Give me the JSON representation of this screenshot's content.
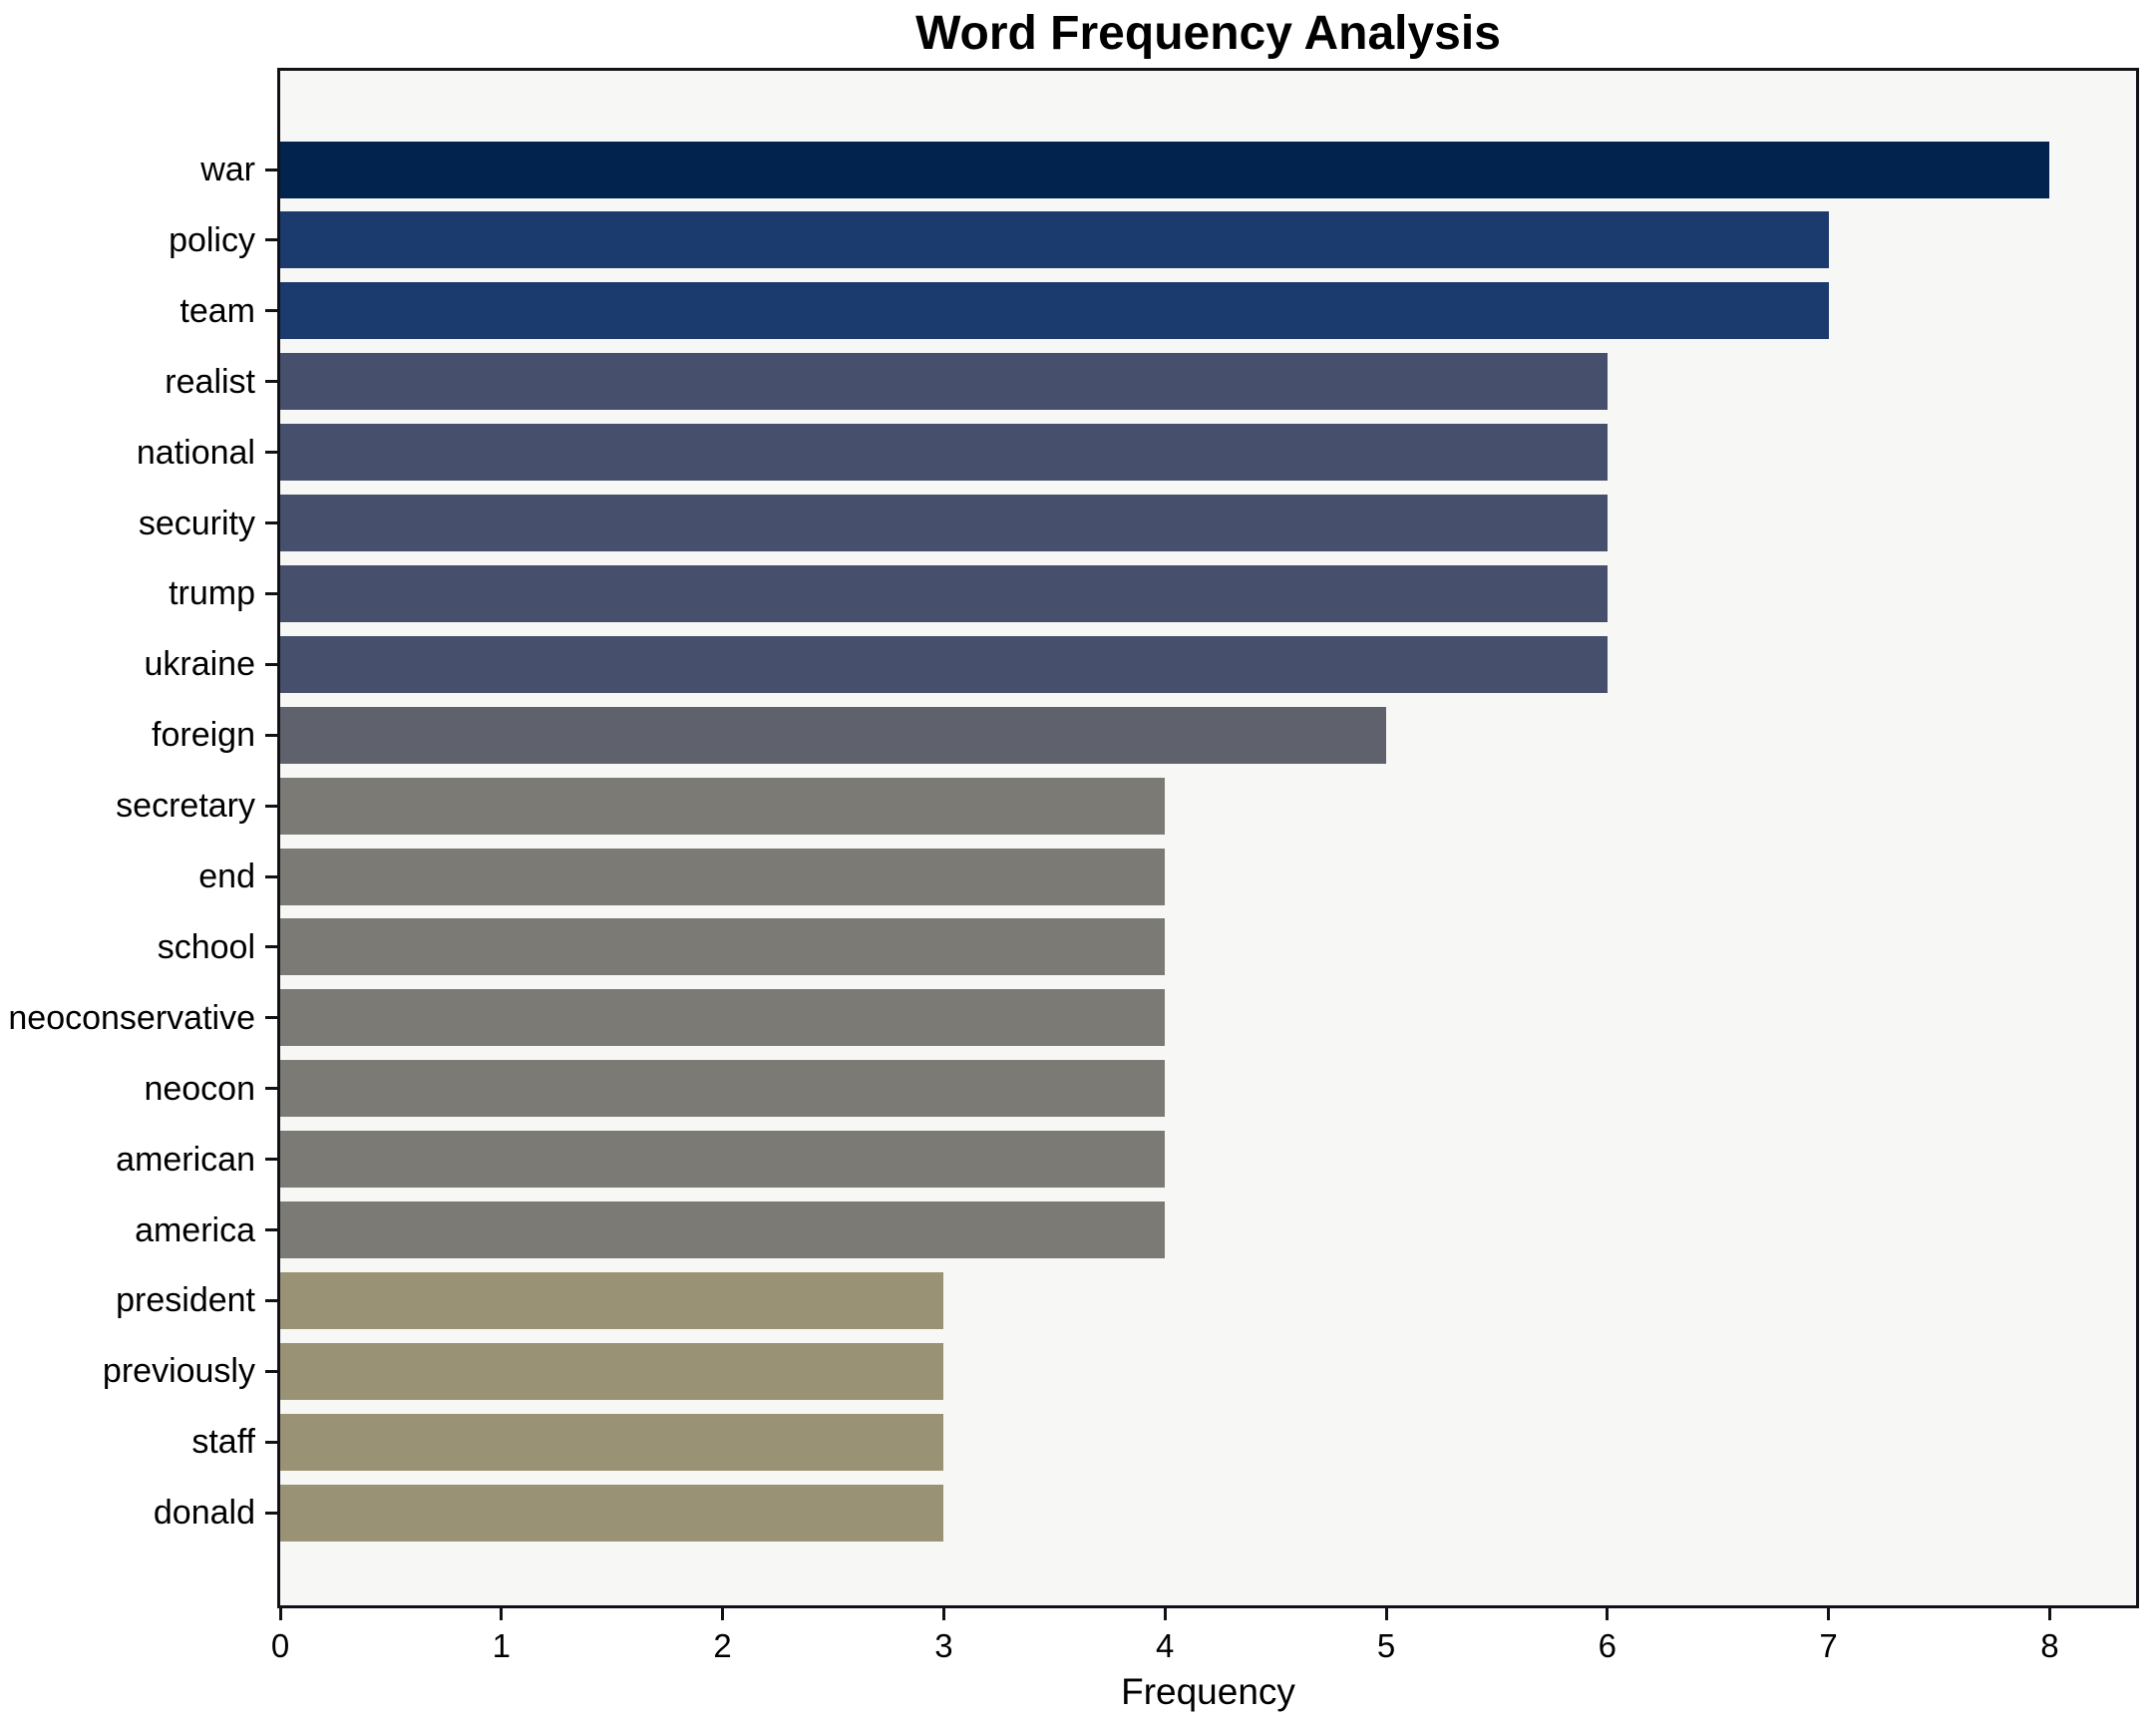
{
  "title": "Word Frequency Analysis",
  "chart_data": {
    "type": "bar",
    "orientation": "horizontal",
    "title": "Word Frequency Analysis",
    "xlabel": "Frequency",
    "ylabel": "",
    "categories": [
      "war",
      "policy",
      "team",
      "realist",
      "national",
      "security",
      "trump",
      "ukraine",
      "foreign",
      "secretary",
      "end",
      "school",
      "neoconservative",
      "neocon",
      "american",
      "america",
      "president",
      "previously",
      "staff",
      "donald"
    ],
    "values": [
      8,
      7,
      7,
      6,
      6,
      6,
      6,
      6,
      5,
      4,
      4,
      4,
      4,
      4,
      4,
      4,
      3,
      3,
      3,
      3
    ],
    "xticks": [
      0,
      1,
      2,
      3,
      4,
      5,
      6,
      7,
      8
    ],
    "xlim": [
      0,
      8.4
    ],
    "grid": false,
    "legend_position": "none",
    "colors_by_value": {
      "8": "#02234e",
      "7": "#1b3a6d",
      "6": "#46506d",
      "5": "#5f626d",
      "4": "#7b7a74",
      "3": "#9a9274"
    },
    "plot_background": "#f7f7f6",
    "figure_background": "#ffffff",
    "spine_color": "#111118",
    "text_color": "#000000"
  }
}
